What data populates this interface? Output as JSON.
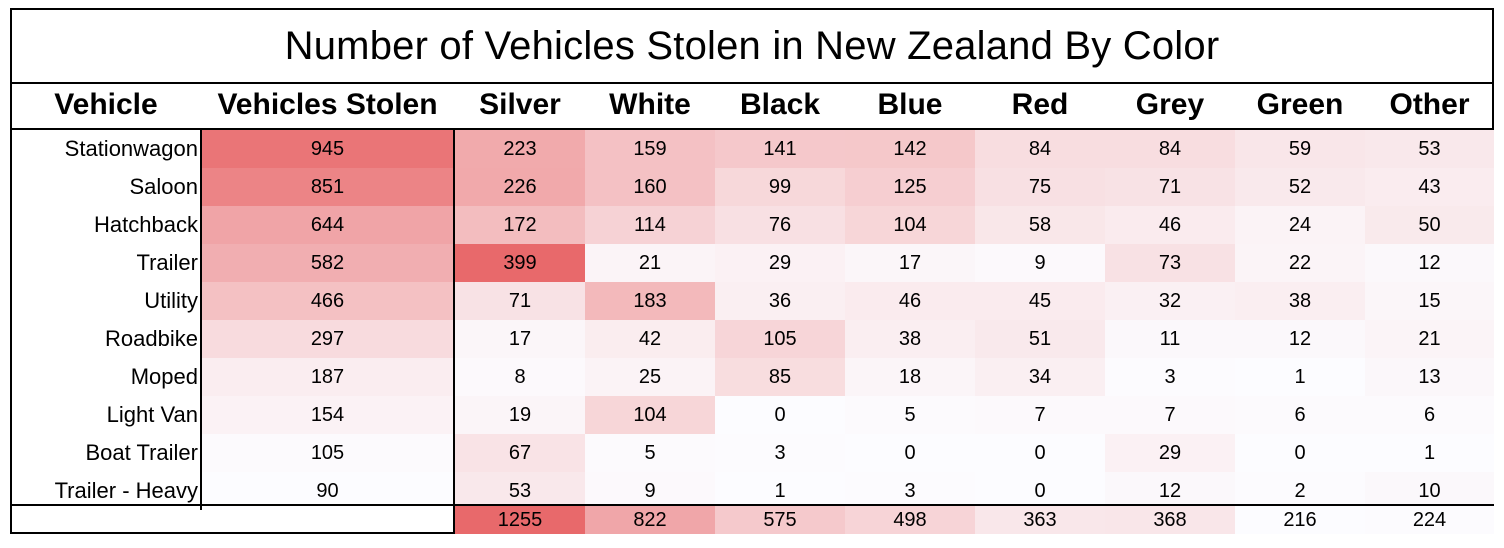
{
  "title": "Number of Vehicles Stolen in New Zealand By Color",
  "headers": [
    "Vehicle",
    "Vehicles Stolen",
    "Silver",
    "White",
    "Black",
    "Blue",
    "Red",
    "Grey",
    "Green",
    "Other"
  ],
  "rows": [
    {
      "vehicle": "Stationwagon",
      "values": [
        945,
        223,
        159,
        141,
        142,
        84,
        84,
        59,
        53
      ]
    },
    {
      "vehicle": "Saloon",
      "values": [
        851,
        226,
        160,
        99,
        125,
        75,
        71,
        52,
        43
      ]
    },
    {
      "vehicle": "Hatchback",
      "values": [
        644,
        172,
        114,
        76,
        104,
        58,
        46,
        24,
        50
      ]
    },
    {
      "vehicle": "Trailer",
      "values": [
        582,
        399,
        21,
        29,
        17,
        9,
        73,
        22,
        12
      ]
    },
    {
      "vehicle": "Utility",
      "values": [
        466,
        71,
        183,
        36,
        46,
        45,
        32,
        38,
        15
      ]
    },
    {
      "vehicle": "Roadbike",
      "values": [
        297,
        17,
        42,
        105,
        38,
        51,
        11,
        12,
        21
      ]
    },
    {
      "vehicle": "Moped",
      "values": [
        187,
        8,
        25,
        85,
        18,
        34,
        3,
        1,
        13
      ]
    },
    {
      "vehicle": "Light Van",
      "values": [
        154,
        19,
        104,
        0,
        5,
        7,
        7,
        6,
        6
      ]
    },
    {
      "vehicle": "Boat Trailer",
      "values": [
        105,
        67,
        5,
        3,
        0,
        0,
        29,
        0,
        1
      ]
    },
    {
      "vehicle": "Trailer - Heavy",
      "values": [
        90,
        53,
        9,
        1,
        3,
        0,
        12,
        2,
        10
      ]
    }
  ],
  "totals": [
    1255,
    822,
    575,
    498,
    363,
    368,
    216,
    224
  ],
  "colors": {
    "heat_high": "#e8696b",
    "heat_low": "#fcfcff",
    "border": "#000000"
  },
  "chart_data": {
    "type": "heatmap",
    "title": "Number of Vehicles Stolen in New Zealand By Color",
    "row_header": "Vehicle",
    "rows": [
      "Stationwagon",
      "Saloon",
      "Hatchback",
      "Trailer",
      "Utility",
      "Roadbike",
      "Moped",
      "Light Van",
      "Boat Trailer",
      "Trailer - Heavy"
    ],
    "columns": [
      "Vehicles Stolen",
      "Silver",
      "White",
      "Black",
      "Blue",
      "Red",
      "Grey",
      "Green",
      "Other"
    ],
    "values": [
      [
        945,
        223,
        159,
        141,
        142,
        84,
        84,
        59,
        53
      ],
      [
        851,
        226,
        160,
        99,
        125,
        75,
        71,
        52,
        43
      ],
      [
        644,
        172,
        114,
        76,
        104,
        58,
        46,
        24,
        50
      ],
      [
        582,
        399,
        21,
        29,
        17,
        9,
        73,
        22,
        12
      ],
      [
        466,
        71,
        183,
        36,
        46,
        45,
        32,
        38,
        15
      ],
      [
        297,
        17,
        42,
        105,
        38,
        51,
        11,
        12,
        21
      ],
      [
        187,
        8,
        25,
        85,
        18,
        34,
        3,
        1,
        13
      ],
      [
        154,
        19,
        104,
        0,
        5,
        7,
        7,
        6,
        6
      ],
      [
        105,
        67,
        5,
        3,
        0,
        0,
        29,
        0,
        1
      ],
      [
        90,
        53,
        9,
        1,
        3,
        0,
        12,
        2,
        10
      ]
    ],
    "column_totals": {
      "Silver": 1255,
      "White": 822,
      "Black": 575,
      "Blue": 498,
      "Red": 363,
      "Grey": 368,
      "Green": 216,
      "Other": 224
    },
    "color_scale": {
      "low": "#fcfcff",
      "high": "#e8696b"
    }
  }
}
